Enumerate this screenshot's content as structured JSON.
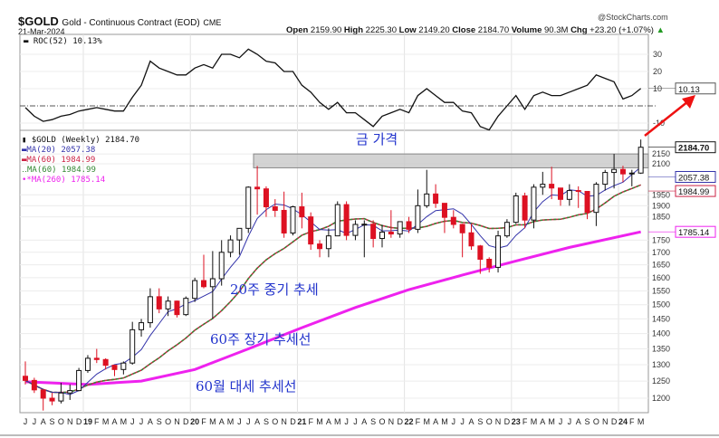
{
  "header": {
    "symbol": "$GOLD",
    "name": "Gold - Continuous Contract (EOD)",
    "exchange": "CME",
    "date": "21-Mar-2024",
    "copyright": "@StockCharts.com",
    "open_label": "Open",
    "open": "2159.90",
    "high_label": "High",
    "high": "2225.30",
    "low_label": "Low",
    "low": "2149.20",
    "close_label": "Close",
    "close": "2184.70",
    "volume_label": "Volume",
    "volume": "90.3M",
    "chg_label": "Chg",
    "chg": "+23.20 (+1.07%)"
  },
  "legend": {
    "roc": "ROC(52) 10.13%",
    "price": "$GOLD (Weekly) 2184.70",
    "ma20": "MA(20) 2057.38",
    "ma60a": "MA(60) 1984.99",
    "ma60b": "MA(60) 1984.99",
    "ma260": "MA(260) 1785.14"
  },
  "annotations": {
    "gold_price": "금 가격",
    "ma20_note": "20주 중기 추세",
    "ma60_note": "60주 장기 추세선",
    "ma260_note": "60월 대세 추세선"
  },
  "colors": {
    "ma20": "#3333aa",
    "ma60": "#cc2244",
    "ma60b": "#338833",
    "ma260": "#ee22ee",
    "up": "#111111",
    "down": "#dd1122",
    "annotation": "#2233cc",
    "arrow": "#ee1111"
  },
  "chart_data": [
    {
      "type": "line",
      "title": "ROC(52) 10.13%",
      "ylim": [
        -15,
        35
      ],
      "yticks": [
        30,
        20,
        10,
        -10
      ],
      "zero_line": 0,
      "last_value_label": "10.13",
      "x": [
        "2018-06",
        "2018-07",
        "2018-08",
        "2018-09",
        "2018-10",
        "2018-11",
        "2018-12",
        "2019-01",
        "2019-02",
        "2019-03",
        "2019-04",
        "2019-05",
        "2019-06",
        "2019-07",
        "2019-08",
        "2019-09",
        "2019-10",
        "2019-11",
        "2019-12",
        "2020-01",
        "2020-02",
        "2020-03",
        "2020-04",
        "2020-05",
        "2020-06",
        "2020-07",
        "2020-08",
        "2020-09",
        "2020-10",
        "2020-11",
        "2020-12",
        "2021-01",
        "2021-02",
        "2021-03",
        "2021-04",
        "2021-05",
        "2021-06",
        "2021-07",
        "2021-08",
        "2021-09",
        "2021-10",
        "2021-11",
        "2021-12",
        "2022-01",
        "2022-02",
        "2022-03",
        "2022-04",
        "2022-05",
        "2022-06",
        "2022-07",
        "2022-08",
        "2022-09",
        "2022-10",
        "2022-11",
        "2022-12",
        "2023-01",
        "2023-02",
        "2023-03",
        "2023-04",
        "2023-05",
        "2023-06",
        "2023-07",
        "2023-08",
        "2023-09",
        "2023-10",
        "2023-11",
        "2023-12",
        "2024-01",
        "2024-02",
        "2024-03"
      ],
      "values": [
        -1,
        -6,
        -9,
        -8,
        -6,
        -5,
        -3,
        -2,
        -1,
        -2,
        -3,
        -3,
        5,
        12,
        26,
        22,
        20,
        18,
        18,
        22,
        24,
        22,
        30,
        30,
        28,
        33,
        30,
        26,
        25,
        20,
        20,
        12,
        8,
        2,
        -2,
        2,
        -4,
        -4,
        -8,
        -12,
        -6,
        -4,
        -2,
        -4,
        6,
        10,
        6,
        2,
        2,
        -3,
        -4,
        -12,
        -14,
        -6,
        0,
        6,
        -2,
        6,
        8,
        6,
        6,
        8,
        10,
        12,
        18,
        16,
        14,
        4,
        6,
        10.13
      ]
    },
    {
      "type": "candlestick",
      "title": "$GOLD (Weekly) 2184.70",
      "yscale": "log",
      "ylim": [
        1170,
        2260
      ],
      "yticks": [
        2150,
        2100,
        1950,
        1900,
        1850,
        1750,
        1700,
        1650,
        1600,
        1550,
        1500,
        1450,
        1400,
        1350,
        1300,
        1250,
        1200
      ],
      "xticks": [
        "J",
        "J",
        "A",
        "S",
        "O",
        "N",
        "D",
        "19",
        "F",
        "M",
        "A",
        "M",
        "J",
        "J",
        "A",
        "S",
        "O",
        "N",
        "D",
        "20",
        "F",
        "M",
        "A",
        "M",
        "J",
        "J",
        "A",
        "S",
        "O",
        "N",
        "D",
        "21",
        "F",
        "M",
        "A",
        "M",
        "J",
        "J",
        "A",
        "S",
        "O",
        "N",
        "D",
        "22",
        "F",
        "M",
        "A",
        "M",
        "J",
        "J",
        "A",
        "S",
        "O",
        "N",
        "D",
        "23",
        "F",
        "M",
        "A",
        "M",
        "J",
        "J",
        "A",
        "S",
        "O",
        "N",
        "D",
        "24",
        "F",
        "M"
      ],
      "x": [
        "2018-06",
        "2018-07",
        "2018-08",
        "2018-09",
        "2018-10",
        "2018-11",
        "2018-12",
        "2019-01",
        "2019-02",
        "2019-03",
        "2019-04",
        "2019-05",
        "2019-06",
        "2019-07",
        "2019-08",
        "2019-09",
        "2019-10",
        "2019-11",
        "2019-12",
        "2020-01",
        "2020-02",
        "2020-03",
        "2020-04",
        "2020-05",
        "2020-06",
        "2020-07",
        "2020-08",
        "2020-09",
        "2020-10",
        "2020-11",
        "2020-12",
        "2021-01",
        "2021-02",
        "2021-03",
        "2021-04",
        "2021-05",
        "2021-06",
        "2021-07",
        "2021-08",
        "2021-09",
        "2021-10",
        "2021-11",
        "2021-12",
        "2022-01",
        "2022-02",
        "2022-03",
        "2022-04",
        "2022-05",
        "2022-06",
        "2022-07",
        "2022-08",
        "2022-09",
        "2022-10",
        "2022-11",
        "2022-12",
        "2023-01",
        "2023-02",
        "2023-03",
        "2023-04",
        "2023-05",
        "2023-06",
        "2023-07",
        "2023-08",
        "2023-09",
        "2023-10",
        "2023-11",
        "2023-12",
        "2024-01",
        "2024-02",
        "2024-03"
      ],
      "close": [
        1252,
        1224,
        1200,
        1192,
        1215,
        1222,
        1282,
        1320,
        1316,
        1298,
        1285,
        1305,
        1413,
        1437,
        1529,
        1485,
        1513,
        1465,
        1523,
        1589,
        1566,
        1596,
        1700,
        1751,
        1800,
        1986,
        1978,
        1895,
        1879,
        1780,
        1895,
        1850,
        1734,
        1715,
        1768,
        1905,
        1770,
        1817,
        1818,
        1757,
        1784,
        1776,
        1829,
        1796,
        1900,
        1954,
        1911,
        1848,
        1817,
        1781,
        1726,
        1672,
        1640,
        1768,
        1826,
        1945,
        1836,
        1986,
        2000,
        1982,
        1929,
        1970,
        1966,
        1870,
        2000,
        2057,
        2072,
        2050,
        2054,
        2184.7
      ],
      "high": [
        1310,
        1260,
        1225,
        1215,
        1245,
        1240,
        1290,
        1330,
        1350,
        1320,
        1300,
        1310,
        1440,
        1450,
        1560,
        1560,
        1530,
        1515,
        1530,
        1600,
        1690,
        1705,
        1750,
        1770,
        1800,
        1990,
        2089,
        1990,
        1930,
        1965,
        1900,
        1960,
        1870,
        1750,
        1800,
        1920,
        1920,
        1835,
        1835,
        1835,
        1815,
        1880,
        1830,
        1850,
        1975,
        2070,
        2000,
        1910,
        1880,
        1820,
        1820,
        1730,
        1680,
        1790,
        1840,
        1960,
        1960,
        2000,
        2060,
        2085,
        1980,
        2000,
        1990,
        1950,
        2010,
        2070,
        2150,
        2090,
        2070,
        2225.3
      ],
      "low": [
        1240,
        1215,
        1165,
        1180,
        1185,
        1195,
        1220,
        1275,
        1305,
        1285,
        1265,
        1270,
        1300,
        1390,
        1420,
        1470,
        1460,
        1455,
        1460,
        1510,
        1560,
        1450,
        1570,
        1680,
        1690,
        1780,
        1860,
        1850,
        1850,
        1760,
        1770,
        1800,
        1710,
        1680,
        1680,
        1770,
        1750,
        1750,
        1680,
        1720,
        1720,
        1760,
        1760,
        1780,
        1780,
        1890,
        1890,
        1780,
        1800,
        1680,
        1710,
        1615,
        1620,
        1620,
        1760,
        1820,
        1800,
        1800,
        1950,
        1930,
        1900,
        1900,
        1890,
        1840,
        1810,
        1970,
        1980,
        2010,
        1990,
        2050
      ]
    }
  ],
  "ma_lines": {
    "ma260": {
      "x": [
        "2018-06",
        "2019-01",
        "2019-07",
        "2020-01",
        "2020-07",
        "2021-01",
        "2021-07",
        "2022-01",
        "2022-07",
        "2023-01",
        "2023-07",
        "2024-03"
      ],
      "values": [
        1248,
        1240,
        1250,
        1285,
        1350,
        1420,
        1490,
        1555,
        1610,
        1665,
        1720,
        1785.14
      ],
      "label": "1785.14"
    },
    "ma20_label": "2057.38",
    "ma60_label": "1984.99",
    "close_label": "2184.70"
  }
}
